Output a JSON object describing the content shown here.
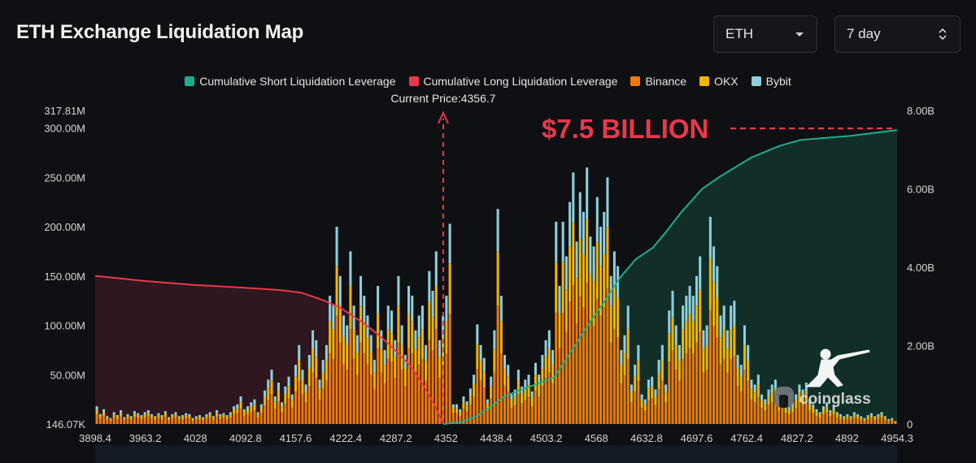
{
  "header": {
    "title": "ETH Exchange Liquidation Map",
    "asset_select": "ETH",
    "range_select": "7 day"
  },
  "colors": {
    "short": "#1fae8c",
    "long": "#e8394a",
    "binance": "#f0780a",
    "okx": "#f4b400",
    "bybit": "#8fd0dc",
    "background": "#0f1014"
  },
  "chart_data": {
    "type": "bar",
    "legend_position": "top",
    "grid": false,
    "legend": [
      {
        "key": "short",
        "label": "Cumulative Short Liquidation Leverage"
      },
      {
        "key": "long",
        "label": "Cumulative Long Liquidation Leverage"
      },
      {
        "key": "binance",
        "label": "Binance"
      },
      {
        "key": "okx",
        "label": "OKX"
      },
      {
        "key": "bybit",
        "label": "Bybit"
      }
    ],
    "current_price_label": "Current Price:4356.7",
    "current_price": 4356.7,
    "annotation": "$7.5 BILLION",
    "annotation_value": 7.5,
    "watermark": "coinglass",
    "x_ticks": [
      "3898.4",
      "3963.2",
      "4028",
      "4092.8",
      "4157.6",
      "4222.4",
      "4287.2",
      "4352",
      "4438.4",
      "4503.2",
      "4568",
      "4632.8",
      "4697.6",
      "4762.4",
      "4827.2",
      "4892",
      "4954.3"
    ],
    "x_range": [
      3898.4,
      4954.3
    ],
    "y_left": {
      "ticks": [
        146070,
        50000000,
        100000000,
        150000000,
        200000000,
        250000000,
        300000000,
        317810000
      ],
      "tick_labels": [
        "146.07K",
        "50.00M",
        "100.00M",
        "150.00M",
        "200.00M",
        "250.00M",
        "300.00M",
        "317.81M"
      ],
      "range": [
        0,
        317810000
      ]
    },
    "y_right": {
      "ticks": [
        0,
        2000000000,
        4000000000,
        6000000000,
        8000000000
      ],
      "tick_labels": [
        "0",
        "2.00B",
        "4.00B",
        "6.00B",
        "8.00B"
      ],
      "range": [
        0,
        8000000000
      ]
    },
    "bar_totals_m": [
      18,
      10,
      15,
      8,
      6,
      12,
      9,
      14,
      7,
      10,
      8,
      13,
      11,
      9,
      12,
      14,
      10,
      8,
      11,
      9,
      13,
      7,
      10,
      12,
      8,
      9,
      11,
      10,
      6,
      8,
      9,
      7,
      10,
      12,
      8,
      14,
      10,
      11,
      9,
      12,
      18,
      20,
      28,
      15,
      18,
      22,
      25,
      12,
      20,
      34,
      45,
      55,
      28,
      42,
      22,
      38,
      48,
      30,
      60,
      80,
      55,
      40,
      70,
      95,
      85,
      45,
      65,
      80,
      130,
      120,
      200,
      150,
      110,
      100,
      175,
      120,
      90,
      150,
      130,
      110,
      90,
      65,
      140,
      95,
      75,
      120,
      115,
      85,
      150,
      100,
      70,
      140,
      130,
      95,
      110,
      120,
      80,
      155,
      135,
      175,
      85,
      110,
      130,
      203,
      20,
      20,
      15,
      28,
      23,
      36,
      50,
      101,
      80,
      67,
      25,
      48,
      95,
      218,
      130,
      70,
      60,
      30,
      35,
      55,
      38,
      45,
      50,
      33,
      62,
      50,
      70,
      85,
      95,
      75,
      205,
      140,
      205,
      170,
      225,
      255,
      185,
      235,
      215,
      260,
      190,
      180,
      230,
      200,
      215,
      250,
      150,
      175,
      160,
      75,
      90,
      120,
      40,
      60,
      80,
      30,
      25,
      45,
      48,
      35,
      65,
      80,
      40,
      115,
      135,
      100,
      80,
      120,
      130,
      140,
      130,
      150,
      170,
      95,
      100,
      210,
      180,
      160,
      110,
      120,
      95,
      120,
      125,
      70,
      60,
      100,
      80,
      45,
      40,
      50,
      30,
      25,
      35,
      40,
      45,
      25,
      30,
      20,
      18,
      22,
      30,
      40,
      35,
      42,
      25,
      20,
      15,
      12,
      18,
      22,
      14,
      18,
      12,
      10,
      8,
      10,
      8,
      12,
      10,
      8,
      6,
      9,
      11,
      8,
      10,
      12,
      8,
      5,
      6,
      3
    ],
    "long_cumulative_b": [
      [
        3898.4,
        3.78
      ],
      [
        3963.2,
        3.65
      ],
      [
        4028,
        3.55
      ],
      [
        4092.8,
        3.48
      ],
      [
        4140,
        3.42
      ],
      [
        4170,
        3.35
      ],
      [
        4200,
        3.15
      ],
      [
        4222.4,
        2.95
      ],
      [
        4250,
        2.6
      ],
      [
        4270,
        2.3
      ],
      [
        4287.2,
        2.0
      ],
      [
        4300,
        1.75
      ],
      [
        4315,
        1.45
      ],
      [
        4330,
        1.0
      ],
      [
        4345,
        0.5
      ],
      [
        4356.7,
        0.0
      ]
    ],
    "short_cumulative_b": [
      [
        4356.7,
        0.0
      ],
      [
        4380,
        0.05
      ],
      [
        4400,
        0.2
      ],
      [
        4420,
        0.45
      ],
      [
        4438.4,
        0.72
      ],
      [
        4470,
        0.95
      ],
      [
        4503.2,
        1.2
      ],
      [
        4530,
        2.0
      ],
      [
        4550,
        2.6
      ],
      [
        4568,
        3.1
      ],
      [
        4590,
        3.75
      ],
      [
        4610,
        4.2
      ],
      [
        4632.8,
        4.5
      ],
      [
        4650,
        4.9
      ],
      [
        4670,
        5.4
      ],
      [
        4697.6,
        6.0
      ],
      [
        4720,
        6.3
      ],
      [
        4762.4,
        6.8
      ],
      [
        4800,
        7.1
      ],
      [
        4827.2,
        7.25
      ],
      [
        4892,
        7.35
      ],
      [
        4954.3,
        7.5
      ]
    ]
  }
}
